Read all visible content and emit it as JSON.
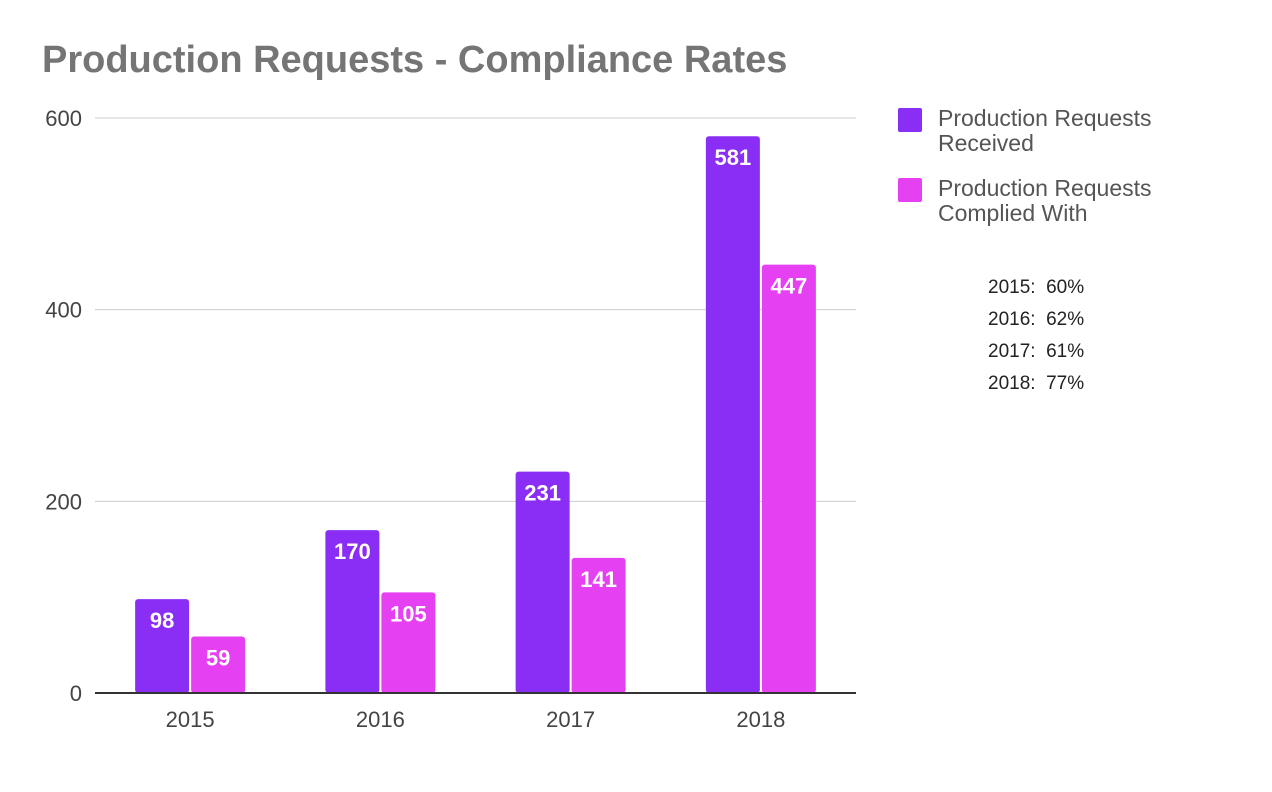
{
  "chart_data": {
    "type": "bar",
    "title": "Production Requests - Compliance Rates",
    "categories": [
      "2015",
      "2016",
      "2017",
      "2018"
    ],
    "series": [
      {
        "name": "Production Requests Received",
        "name_lines": [
          "Production Requests",
          "Received"
        ],
        "color": "#8a2ef5",
        "values": [
          98,
          170,
          231,
          581
        ]
      },
      {
        "name": "Production Requests Complied With",
        "name_lines": [
          "Production Requests",
          "Complied With"
        ],
        "color": "#e541f3",
        "values": [
          59,
          105,
          141,
          447
        ]
      }
    ],
    "ylim": [
      0,
      600
    ],
    "yticks": [
      0,
      200,
      400,
      600
    ],
    "grid": true,
    "legend_position": "right",
    "data_labels": true,
    "annotations": [
      "2015:  60%",
      "2016:  62%",
      "2017:  61%",
      "2018:  77%"
    ]
  }
}
